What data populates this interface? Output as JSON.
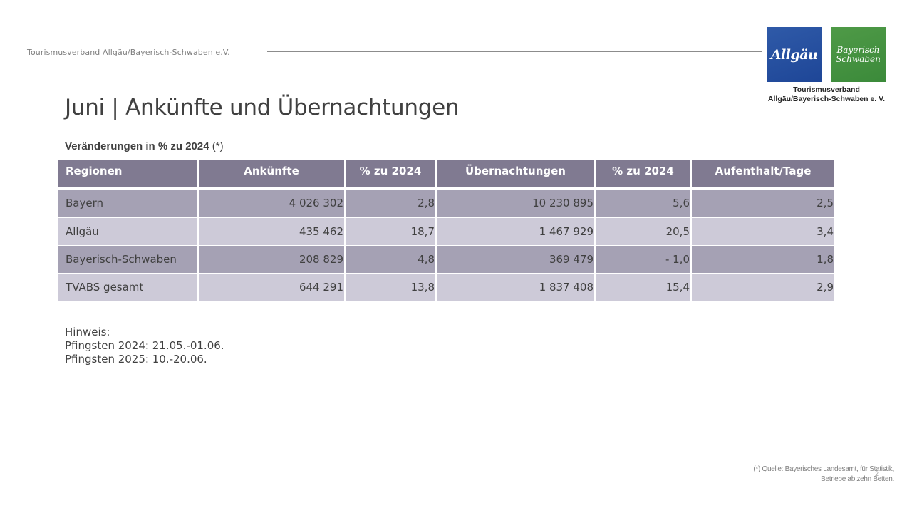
{
  "header": {
    "org_text": "Tourismusverband  Allgäu/Bayerisch-Schwaben  e.V."
  },
  "logo": {
    "blue_text": "Allgäu",
    "green_line1": "Bayerisch",
    "green_line2": "Schwaben",
    "caption_line1": "Tourismusverband",
    "caption_line2": "Allgäu/Bayerisch-Schwaben e. V.",
    "blue_color": "#1e4697",
    "green_color": "#3b8a3a"
  },
  "title": "Juni | Ankünfte und Übernachtungen",
  "subtitle": {
    "bold": "Veränderungen in % zu 2024",
    "rest": " (*)"
  },
  "table": {
    "columns": [
      "Regionen",
      "Ankünfte",
      "% zu 2024",
      "Übernachtungen",
      "% zu 2024",
      "Aufenthalt/Tage"
    ],
    "rows": [
      [
        "Bayern",
        "4 026 302",
        "2,8",
        "10 230 895",
        "5,6",
        "2,5"
      ],
      [
        "Allgäu",
        "435 462",
        "18,7",
        "1 467 929",
        "20,5",
        "3,4"
      ],
      [
        "Bayerisch-Schwaben",
        "208 829",
        "4,8",
        "369 479",
        "- 1,0",
        "1,8"
      ],
      [
        "TVABS gesamt",
        "644 291",
        "13,8",
        "1 837 408",
        "15,4",
        "2,9"
      ]
    ],
    "header_color": "#807a91",
    "dark_row_color": "#a5a1b4",
    "light_row_color": "#cdcad8"
  },
  "note": {
    "line1": "Hinweis:",
    "line2": "Pfingsten 2024: 21.05.-01.06.",
    "line3": "Pfingsten 2025: 10.-20.06."
  },
  "source": {
    "line1": "(*)  Quelle: Bayerisches Landesamt, für Statistik,",
    "line2": "Betriebe ab zehn Betten."
  },
  "page_number": "2"
}
